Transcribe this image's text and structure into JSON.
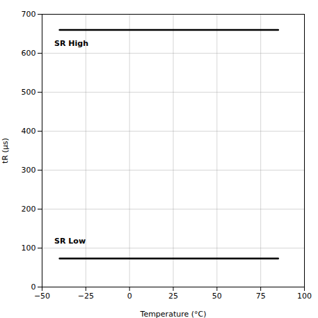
{
  "chart_data": {
    "type": "line",
    "series": [
      {
        "x": [
          -40,
          85
        ],
        "values": [
          660,
          660
        ],
        "color": "#000000"
      },
      {
        "x": [
          -40,
          85
        ],
        "values": [
          73,
          73
        ],
        "color": "#000000"
      }
    ],
    "annotations": [
      {
        "text": "SR High",
        "x": -43,
        "y": 625,
        "color": "#000000"
      },
      {
        "text": "SR Low",
        "x": -43,
        "y": 118,
        "color": "#000000"
      }
    ],
    "x_label": "Temperature (°C)",
    "y_label": "tR (µs)",
    "xlim": [
      -50,
      100
    ],
    "ylim": [
      0,
      700
    ],
    "xticks": [
      -50,
      -25,
      0,
      25,
      50,
      75,
      100
    ],
    "yticks": [
      0,
      100,
      200,
      300,
      400,
      500,
      600,
      700
    ],
    "grid": true
  }
}
